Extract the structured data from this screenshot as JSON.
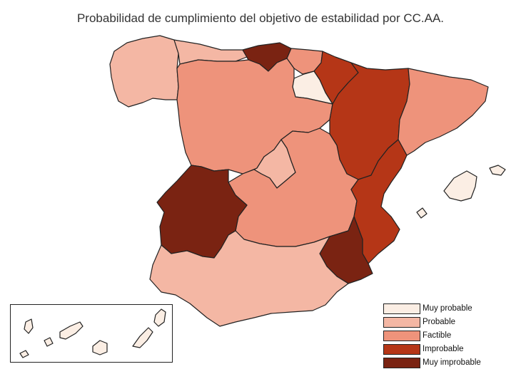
{
  "title": "Probabilidad de cumplimiento del objetivo de estabilidad por CC.AA.",
  "legend": [
    {
      "label": "Muy probable",
      "color": "#fbeee4"
    },
    {
      "label": "Probable",
      "color": "#f4b7a4"
    },
    {
      "label": "Factible",
      "color": "#ee937b"
    },
    {
      "label": "Improbable",
      "color": "#b53617"
    },
    {
      "label": "Muy improbable",
      "color": "#7a2312"
    }
  ],
  "regions": {
    "galicia": "Probable",
    "asturias": "Probable",
    "cantabria": "Muy improbable",
    "pais_vasco": "Factible",
    "navarra": "Improbable",
    "la_rioja": "Muy probable",
    "aragon": "Improbable",
    "cataluna": "Factible",
    "castilla_y_leon": "Factible",
    "madrid": "Probable",
    "castilla_la_mancha": "Factible",
    "extremadura": "Muy improbable",
    "comunidad_valenciana": "Improbable",
    "murcia": "Muy improbable",
    "andalucia": "Probable",
    "baleares": "Muy probable",
    "canarias": "Muy probable"
  }
}
